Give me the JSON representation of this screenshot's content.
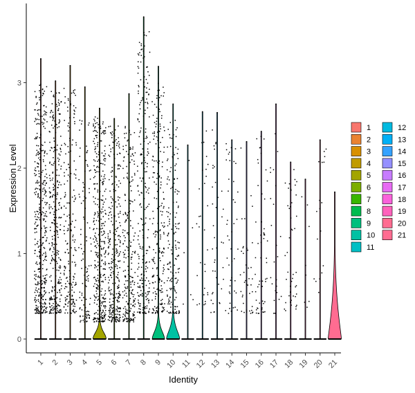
{
  "chart_data": {
    "type": "violin",
    "xlabel": "Identity",
    "ylabel": "Expression Level",
    "ylim": [
      -0.15,
      3.9
    ],
    "y_ticks": [
      0,
      1,
      2,
      3
    ],
    "grid": false,
    "legend_position": "right",
    "categories": [
      "1",
      "2",
      "3",
      "4",
      "5",
      "6",
      "7",
      "8",
      "9",
      "10",
      "11",
      "12",
      "13",
      "14",
      "15",
      "16",
      "17",
      "18",
      "19",
      "20",
      "21"
    ],
    "colors": [
      "#F8766D",
      "#EA8331",
      "#D89000",
      "#C09B00",
      "#A3A500",
      "#7CAE00",
      "#39B600",
      "#00BB4E",
      "#00BF7D",
      "#00C1A3",
      "#00BFC4",
      "#00BAE0",
      "#00B0F6",
      "#35A2FF",
      "#9590FF",
      "#C77CFF",
      "#E76BF3",
      "#FA62DB",
      "#FF62BC",
      "#FF6C91",
      "#FF6C91"
    ],
    "max_values": [
      3.28,
      3.02,
      3.2,
      2.95,
      2.7,
      2.58,
      2.87,
      3.77,
      3.19,
      2.75,
      2.27,
      2.66,
      2.65,
      2.33,
      2.31,
      2.43,
      2.75,
      2.07,
      1.87,
      2.33,
      1.72
    ],
    "point_spread": [
      {
        "lo": 0.3,
        "hi": 3.0,
        "n": 420
      },
      {
        "lo": 0.3,
        "hi": 2.9,
        "n": 320
      },
      {
        "lo": 0.3,
        "hi": 3.0,
        "n": 200
      },
      {
        "lo": 0.2,
        "hi": 2.6,
        "n": 110
      },
      {
        "lo": 0.2,
        "hi": 2.6,
        "n": 380
      },
      {
        "lo": 0.2,
        "hi": 2.5,
        "n": 300
      },
      {
        "lo": 0.2,
        "hi": 2.5,
        "n": 230
      },
      {
        "lo": 0.3,
        "hi": 3.6,
        "n": 260
      },
      {
        "lo": 0.3,
        "hi": 3.0,
        "n": 220
      },
      {
        "lo": 0.3,
        "hi": 2.6,
        "n": 170
      },
      {
        "lo": 0.4,
        "hi": 2.2,
        "n": 6
      },
      {
        "lo": 0.4,
        "hi": 2.5,
        "n": 30
      },
      {
        "lo": 0.3,
        "hi": 2.5,
        "n": 40
      },
      {
        "lo": 0.3,
        "hi": 2.3,
        "n": 45
      },
      {
        "lo": 0.3,
        "hi": 2.3,
        "n": 40
      },
      {
        "lo": 0.3,
        "hi": 2.4,
        "n": 55
      },
      {
        "lo": 0.3,
        "hi": 2.6,
        "n": 25
      },
      {
        "lo": 0.3,
        "hi": 2.05,
        "n": 45
      },
      {
        "lo": 0.3,
        "hi": 1.8,
        "n": 8
      },
      {
        "lo": 0.4,
        "hi": 2.3,
        "n": 18
      },
      {
        "lo": 0.0,
        "hi": 0.0,
        "n": 0
      }
    ],
    "violins": [
      {
        "category": "5",
        "bulge_height": 0.25,
        "bulge_width": 0.45
      },
      {
        "category": "9",
        "bulge_height": 0.3,
        "bulge_width": 0.42
      },
      {
        "category": "10",
        "bulge_height": 0.35,
        "bulge_width": 0.45
      },
      {
        "category": "21",
        "bulge_height": 1.1,
        "bulge_width": 0.45
      }
    ]
  }
}
